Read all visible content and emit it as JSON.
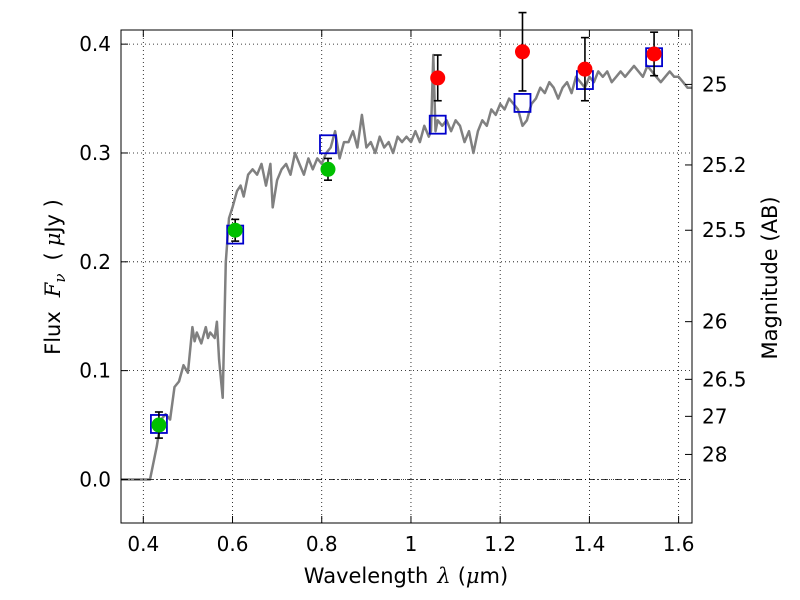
{
  "chart_data": {
    "type": "scatter",
    "x_axis": {
      "label_text": "Wavelength",
      "label_symbol": "λ",
      "label_unit_open": "(",
      "label_unit_mu": "μ",
      "label_unit_rest": "m)",
      "range": [
        0.35,
        1.63
      ],
      "ticks": [
        {
          "value": 0.4,
          "label": "0.4"
        },
        {
          "value": 0.6,
          "label": "0.6"
        },
        {
          "value": 0.8,
          "label": "0.8"
        },
        {
          "value": 1.0,
          "label": "1"
        },
        {
          "value": 1.2,
          "label": "1.2"
        },
        {
          "value": 1.4,
          "label": "1.4"
        },
        {
          "value": 1.6,
          "label": "1.6"
        }
      ]
    },
    "y_axis": {
      "label_text": "Flux",
      "label_symbol": "F",
      "label_subscript": "ν",
      "label_unit_open": "(",
      "label_unit_mu": "μ",
      "label_unit_rest": "Jy )",
      "range": [
        -0.04,
        0.413
      ],
      "ticks": [
        {
          "value": 0.0,
          "label": "0.0"
        },
        {
          "value": 0.1,
          "label": "0.1"
        },
        {
          "value": 0.2,
          "label": "0.2"
        },
        {
          "value": 0.3,
          "label": "0.3"
        },
        {
          "value": 0.4,
          "label": "0.4"
        }
      ]
    },
    "y2_axis": {
      "label": "Magnitude (AB)",
      "ticks": [
        {
          "flux": 0.363,
          "label": "25"
        },
        {
          "flux": 0.289,
          "label": "25.2"
        },
        {
          "flux": 0.229,
          "label": "25.5"
        },
        {
          "flux": 0.145,
          "label": "26"
        },
        {
          "flux": 0.092,
          "label": "26.5"
        },
        {
          "flux": 0.058,
          "label": "27"
        },
        {
          "flux": 0.023,
          "label": "28"
        }
      ]
    },
    "grid": true,
    "template_spectrum": {
      "color": "#808080",
      "points": [
        [
          0.35,
          0.0
        ],
        [
          0.415,
          0.0
        ],
        [
          0.43,
          0.03
        ],
        [
          0.44,
          0.055
        ],
        [
          0.45,
          0.06
        ],
        [
          0.46,
          0.055
        ],
        [
          0.47,
          0.085
        ],
        [
          0.48,
          0.09
        ],
        [
          0.49,
          0.105
        ],
        [
          0.5,
          0.098
        ],
        [
          0.51,
          0.14
        ],
        [
          0.515,
          0.127
        ],
        [
          0.52,
          0.135
        ],
        [
          0.53,
          0.125
        ],
        [
          0.54,
          0.14
        ],
        [
          0.545,
          0.13
        ],
        [
          0.55,
          0.135
        ],
        [
          0.56,
          0.13
        ],
        [
          0.565,
          0.145
        ],
        [
          0.57,
          0.11
        ],
        [
          0.578,
          0.075
        ],
        [
          0.585,
          0.2
        ],
        [
          0.592,
          0.24
        ],
        [
          0.6,
          0.25
        ],
        [
          0.61,
          0.265
        ],
        [
          0.618,
          0.27
        ],
        [
          0.625,
          0.26
        ],
        [
          0.635,
          0.28
        ],
        [
          0.645,
          0.285
        ],
        [
          0.655,
          0.28
        ],
        [
          0.665,
          0.29
        ],
        [
          0.675,
          0.27
        ],
        [
          0.685,
          0.29
        ],
        [
          0.69,
          0.25
        ],
        [
          0.7,
          0.275
        ],
        [
          0.71,
          0.285
        ],
        [
          0.72,
          0.29
        ],
        [
          0.73,
          0.28
        ],
        [
          0.74,
          0.3
        ],
        [
          0.75,
          0.29
        ],
        [
          0.76,
          0.28
        ],
        [
          0.77,
          0.295
        ],
        [
          0.78,
          0.285
        ],
        [
          0.79,
          0.295
        ],
        [
          0.8,
          0.29
        ],
        [
          0.81,
          0.3
        ],
        [
          0.82,
          0.305
        ],
        [
          0.83,
          0.32
        ],
        [
          0.84,
          0.295
        ],
        [
          0.85,
          0.31
        ],
        [
          0.86,
          0.31
        ],
        [
          0.87,
          0.32
        ],
        [
          0.88,
          0.305
        ],
        [
          0.89,
          0.335
        ],
        [
          0.9,
          0.305
        ],
        [
          0.91,
          0.31
        ],
        [
          0.92,
          0.3
        ],
        [
          0.93,
          0.315
        ],
        [
          0.94,
          0.305
        ],
        [
          0.95,
          0.31
        ],
        [
          0.96,
          0.3
        ],
        [
          0.97,
          0.315
        ],
        [
          0.98,
          0.31
        ],
        [
          0.99,
          0.315
        ],
        [
          1.0,
          0.31
        ],
        [
          1.01,
          0.32
        ],
        [
          1.02,
          0.31
        ],
        [
          1.03,
          0.325
        ],
        [
          1.04,
          0.315
        ],
        [
          1.045,
          0.32
        ],
        [
          1.05,
          0.39
        ],
        [
          1.055,
          0.32
        ],
        [
          1.06,
          0.33
        ],
        [
          1.07,
          0.325
        ],
        [
          1.08,
          0.33
        ],
        [
          1.09,
          0.32
        ],
        [
          1.1,
          0.33
        ],
        [
          1.11,
          0.325
        ],
        [
          1.12,
          0.31
        ],
        [
          1.13,
          0.32
        ],
        [
          1.14,
          0.3
        ],
        [
          1.15,
          0.32
        ],
        [
          1.16,
          0.33
        ],
        [
          1.17,
          0.325
        ],
        [
          1.18,
          0.34
        ],
        [
          1.19,
          0.335
        ],
        [
          1.2,
          0.345
        ],
        [
          1.21,
          0.34
        ],
        [
          1.22,
          0.35
        ],
        [
          1.23,
          0.345
        ],
        [
          1.24,
          0.34
        ],
        [
          1.25,
          0.325
        ],
        [
          1.26,
          0.33
        ],
        [
          1.27,
          0.345
        ],
        [
          1.28,
          0.35
        ],
        [
          1.29,
          0.36
        ],
        [
          1.3,
          0.355
        ],
        [
          1.31,
          0.365
        ],
        [
          1.32,
          0.36
        ],
        [
          1.33,
          0.35
        ],
        [
          1.34,
          0.36
        ],
        [
          1.35,
          0.365
        ],
        [
          1.36,
          0.355
        ],
        [
          1.37,
          0.37
        ],
        [
          1.38,
          0.365
        ],
        [
          1.39,
          0.36
        ],
        [
          1.4,
          0.37
        ],
        [
          1.41,
          0.365
        ],
        [
          1.42,
          0.375
        ],
        [
          1.43,
          0.37
        ],
        [
          1.44,
          0.375
        ],
        [
          1.45,
          0.365
        ],
        [
          1.46,
          0.37
        ],
        [
          1.47,
          0.375
        ],
        [
          1.48,
          0.37
        ],
        [
          1.49,
          0.375
        ],
        [
          1.5,
          0.38
        ],
        [
          1.51,
          0.375
        ],
        [
          1.52,
          0.37
        ],
        [
          1.53,
          0.38
        ],
        [
          1.54,
          0.375
        ],
        [
          1.55,
          0.37
        ],
        [
          1.56,
          0.365
        ],
        [
          1.57,
          0.37
        ],
        [
          1.58,
          0.375
        ],
        [
          1.59,
          0.37
        ],
        [
          1.6,
          0.37
        ],
        [
          1.61,
          0.365
        ],
        [
          1.62,
          0.36
        ],
        [
          1.63,
          0.36
        ]
      ]
    },
    "model_photometry": {
      "marker": "square",
      "color": "#0000cc",
      "points": [
        {
          "x": 0.435,
          "y": 0.051
        },
        {
          "x": 0.606,
          "y": 0.225
        },
        {
          "x": 0.814,
          "y": 0.308
        },
        {
          "x": 1.06,
          "y": 0.326
        },
        {
          "x": 1.25,
          "y": 0.346
        },
        {
          "x": 1.39,
          "y": 0.367
        },
        {
          "x": 1.545,
          "y": 0.388
        }
      ]
    },
    "observed_photometry": [
      {
        "x": 0.435,
        "y": 0.05,
        "err": 0.012,
        "color": "#00c000"
      },
      {
        "x": 0.606,
        "y": 0.229,
        "err": 0.01,
        "color": "#00c000"
      },
      {
        "x": 0.814,
        "y": 0.285,
        "err": 0.01,
        "color": "#00c000"
      },
      {
        "x": 1.06,
        "y": 0.369,
        "err": 0.021,
        "color": "#ff0000"
      },
      {
        "x": 1.25,
        "y": 0.393,
        "err": 0.036,
        "color": "#ff0000"
      },
      {
        "x": 1.39,
        "y": 0.377,
        "err": 0.029,
        "color": "#ff0000"
      },
      {
        "x": 1.545,
        "y": 0.391,
        "err": 0.02,
        "color": "#ff0000"
      }
    ]
  }
}
